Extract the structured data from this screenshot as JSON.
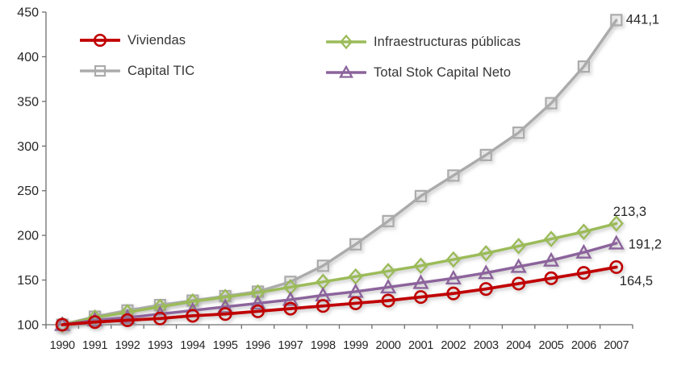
{
  "chart_data": {
    "type": "line",
    "title": "",
    "xlabel": "",
    "ylabel": "",
    "grid": false,
    "legend_position": "top-inside-two-columns",
    "ylim": [
      100,
      450
    ],
    "yticks": [
      100,
      150,
      200,
      250,
      300,
      350,
      400,
      450
    ],
    "x_categories": [
      "1990",
      "1991",
      "1992",
      "1993",
      "1994",
      "1995",
      "1996",
      "1997",
      "1998",
      "1999",
      "2000",
      "2001",
      "2002",
      "2003",
      "2004",
      "2005",
      "2006",
      "2007"
    ],
    "series": [
      {
        "name": "Capital TIC",
        "marker": "square",
        "color": "#ABABAB",
        "end_label": "441,1",
        "end_label_offset": [
          12,
          -1
        ],
        "values": [
          100,
          109,
          116,
          122,
          127,
          132,
          137,
          148,
          166,
          190,
          216,
          244,
          267,
          290,
          315,
          348,
          389,
          441.1
        ]
      },
      {
        "name": "Infraestructuras públicas",
        "marker": "diamond",
        "color": "#9BBB59",
        "end_label": "213,3",
        "end_label_offset": [
          -4,
          -15
        ],
        "values": [
          100,
          108,
          114,
          120,
          126,
          131,
          136,
          142,
          148,
          154,
          160,
          166,
          173,
          180,
          188,
          196,
          204,
          213.3
        ]
      },
      {
        "name": "Total Stok Capital Neto",
        "marker": "triangle",
        "color": "#8C639C",
        "end_label": "191,2",
        "end_label_offset": [
          15,
          1
        ],
        "values": [
          100,
          105,
          108,
          112,
          116,
          120,
          124,
          128,
          133,
          137,
          142,
          147,
          152,
          158,
          165,
          172,
          181,
          191.2
        ]
      },
      {
        "name": "Viviendas",
        "marker": "circle",
        "color": "#C00000",
        "end_label": "164,5",
        "end_label_offset": [
          4,
          17
        ],
        "values": [
          100,
          103,
          105,
          107,
          110,
          112,
          115,
          118,
          121,
          124,
          127,
          131,
          135,
          140,
          146,
          152,
          158,
          164.5
        ]
      }
    ],
    "legend_order_display": [
      "Viviendas",
      "Infraestructuras públicas",
      "Capital TIC",
      "Total Stok Capital Neto"
    ],
    "axis_color": "#6E6E6E",
    "text_color": "#262626"
  }
}
